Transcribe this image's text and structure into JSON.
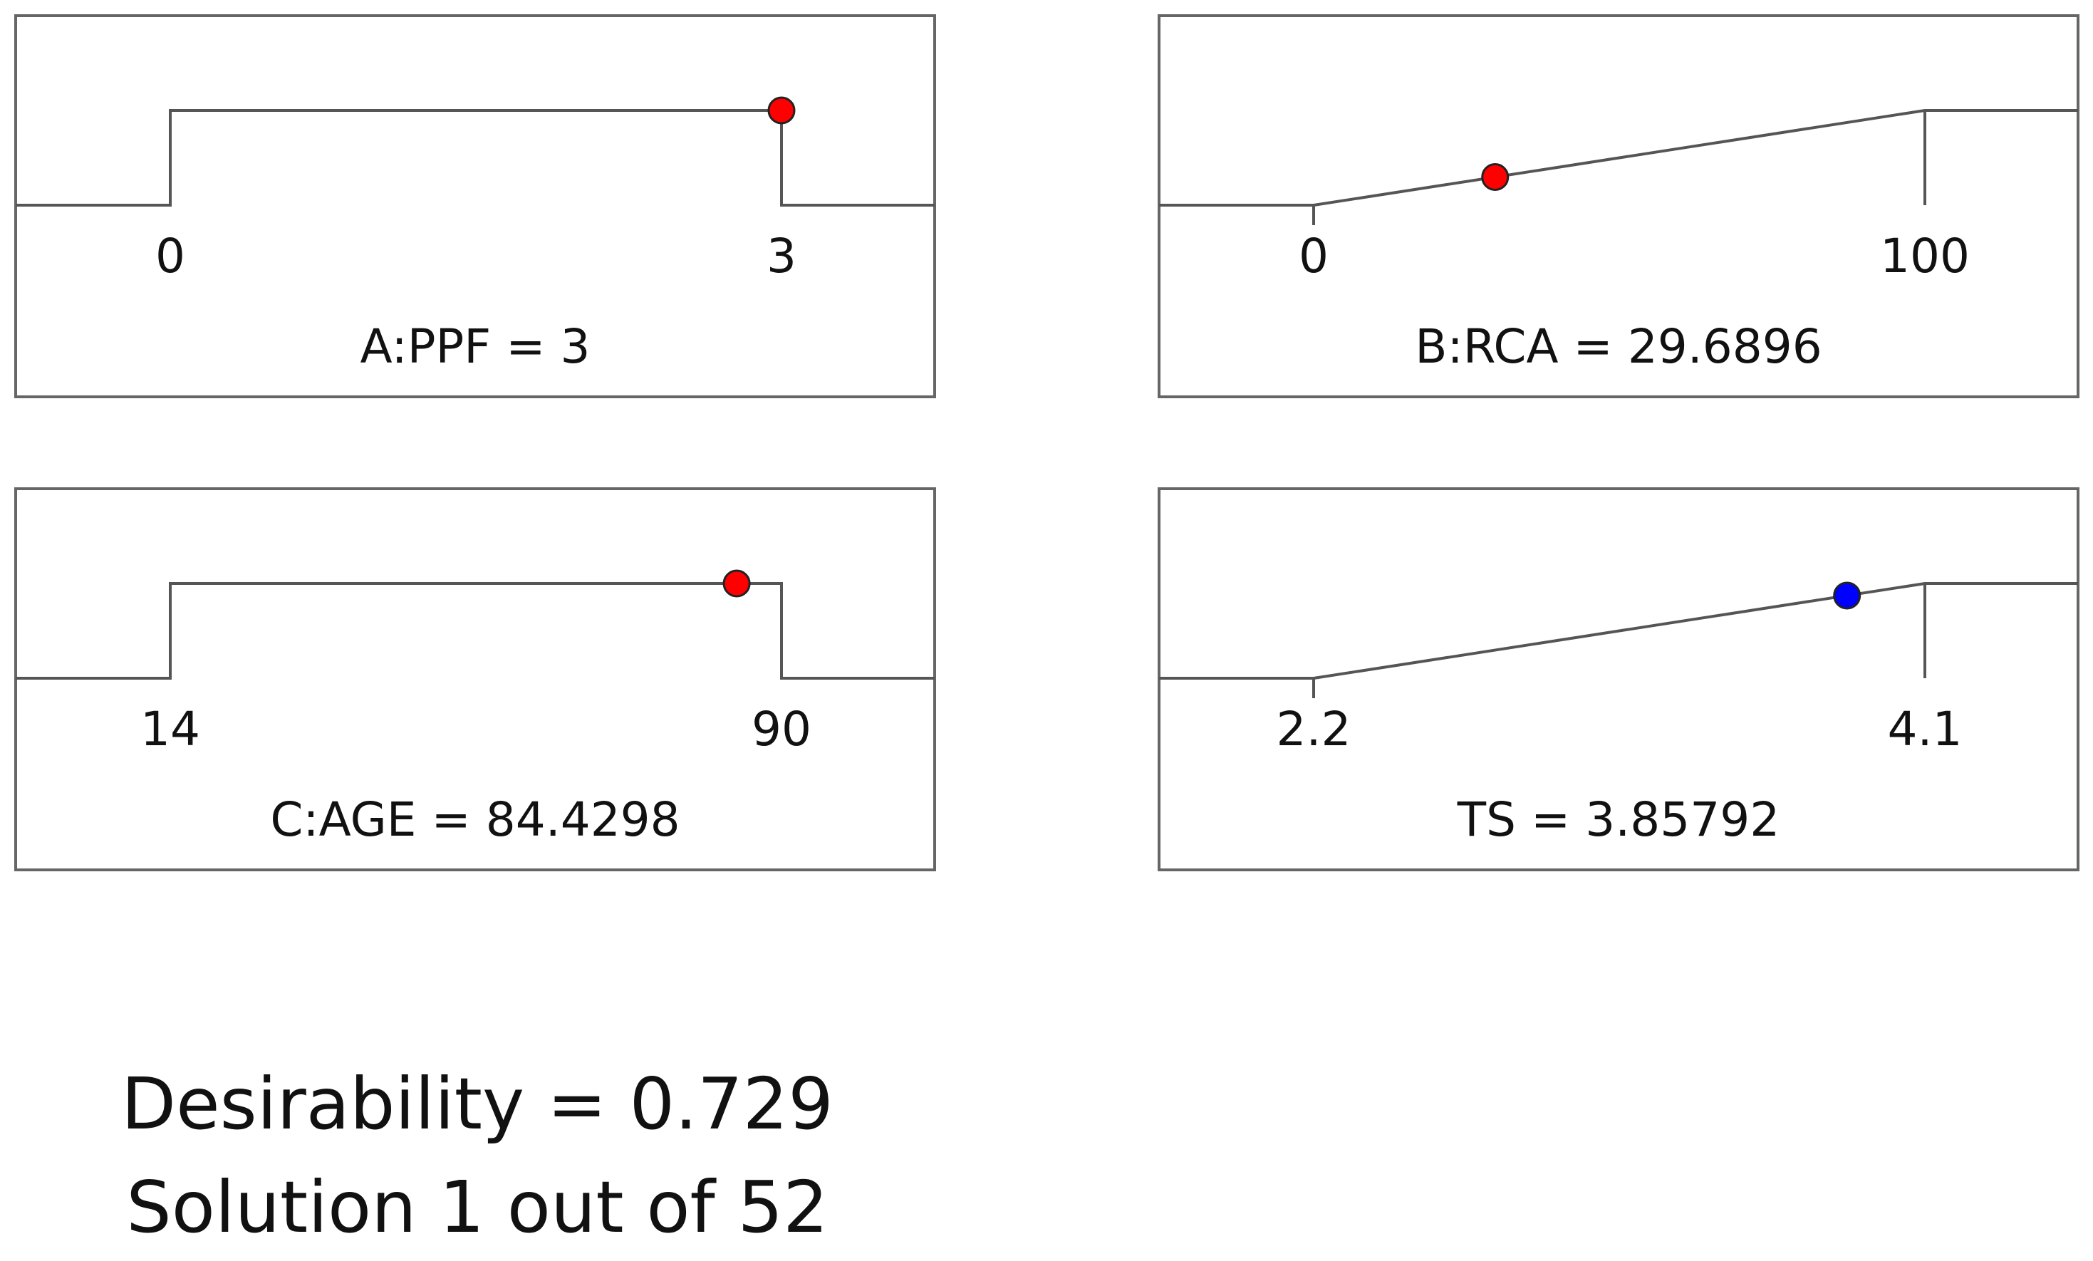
{
  "chart_data": [
    {
      "type": "ramp",
      "label": "A:PPF = 3",
      "min_label": "0",
      "max_label": "3",
      "min": 0,
      "max": 3,
      "value": 3,
      "goal": "in range",
      "marker_color": "#ff0000"
    },
    {
      "type": "ramp",
      "label": "B:RCA = 29.6896",
      "min_label": "0",
      "max_label": "100",
      "min": 0,
      "max": 100,
      "value": 29.6896,
      "goal": "maximize",
      "marker_color": "#ff0000"
    },
    {
      "type": "ramp",
      "label": "C:AGE = 84.4298",
      "min_label": "14",
      "max_label": "90",
      "min": 14,
      "max": 90,
      "value": 84.4298,
      "goal": "in range",
      "marker_color": "#ff0000"
    },
    {
      "type": "ramp",
      "label": "TS = 3.85792",
      "min_label": "2.2",
      "max_label": "4.1",
      "min": 2.2,
      "max": 4.1,
      "value": 3.85792,
      "goal": "maximize",
      "marker_color": "#0000ff"
    }
  ],
  "summary": {
    "desirability": "Desirability = 0.729",
    "solution": "Solution 1 out of 52"
  },
  "colors": {
    "frame": "#666666",
    "curve": "#555555",
    "text": "#111111"
  }
}
